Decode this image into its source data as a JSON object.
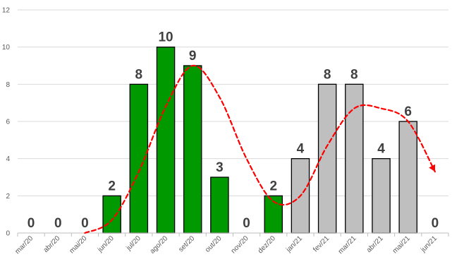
{
  "chart_data": {
    "type": "bar",
    "title": "",
    "xlabel": "",
    "ylabel": "",
    "ylim": [
      0,
      12
    ],
    "yticks": [
      0,
      2,
      4,
      6,
      8,
      10,
      12
    ],
    "grid": true,
    "categories": [
      "mar/20",
      "abr/20",
      "mai/20",
      "jun/20",
      "jul/20",
      "ago/20",
      "set/20",
      "out/20",
      "nov/20",
      "dez/20",
      "jan/21",
      "fev/21",
      "mar/21",
      "abr/21",
      "mai/21",
      "jun/21"
    ],
    "series": [
      {
        "values": [
          0,
          0,
          0,
          2,
          8,
          10,
          9,
          3,
          0,
          2,
          4,
          8,
          8,
          4,
          6,
          0
        ],
        "bar_colors": [
          "#009900",
          "#009900",
          "#009900",
          "#009900",
          "#009900",
          "#009900",
          "#009900",
          "#009900",
          "#009900",
          "#009900",
          "#bfbfbf",
          "#bfbfbf",
          "#bfbfbf",
          "#bfbfbf",
          "#bfbfbf",
          "#bfbfbf"
        ]
      },
      {
        "type": "line",
        "style": "dashed",
        "color": "#ff0000",
        "values": [
          null,
          null,
          0,
          0.7,
          3.3,
          6.8,
          9.0,
          7.3,
          4.0,
          1.7,
          2.0,
          4.7,
          6.7,
          6.7,
          6.0,
          3.3
        ]
      }
    ]
  }
}
